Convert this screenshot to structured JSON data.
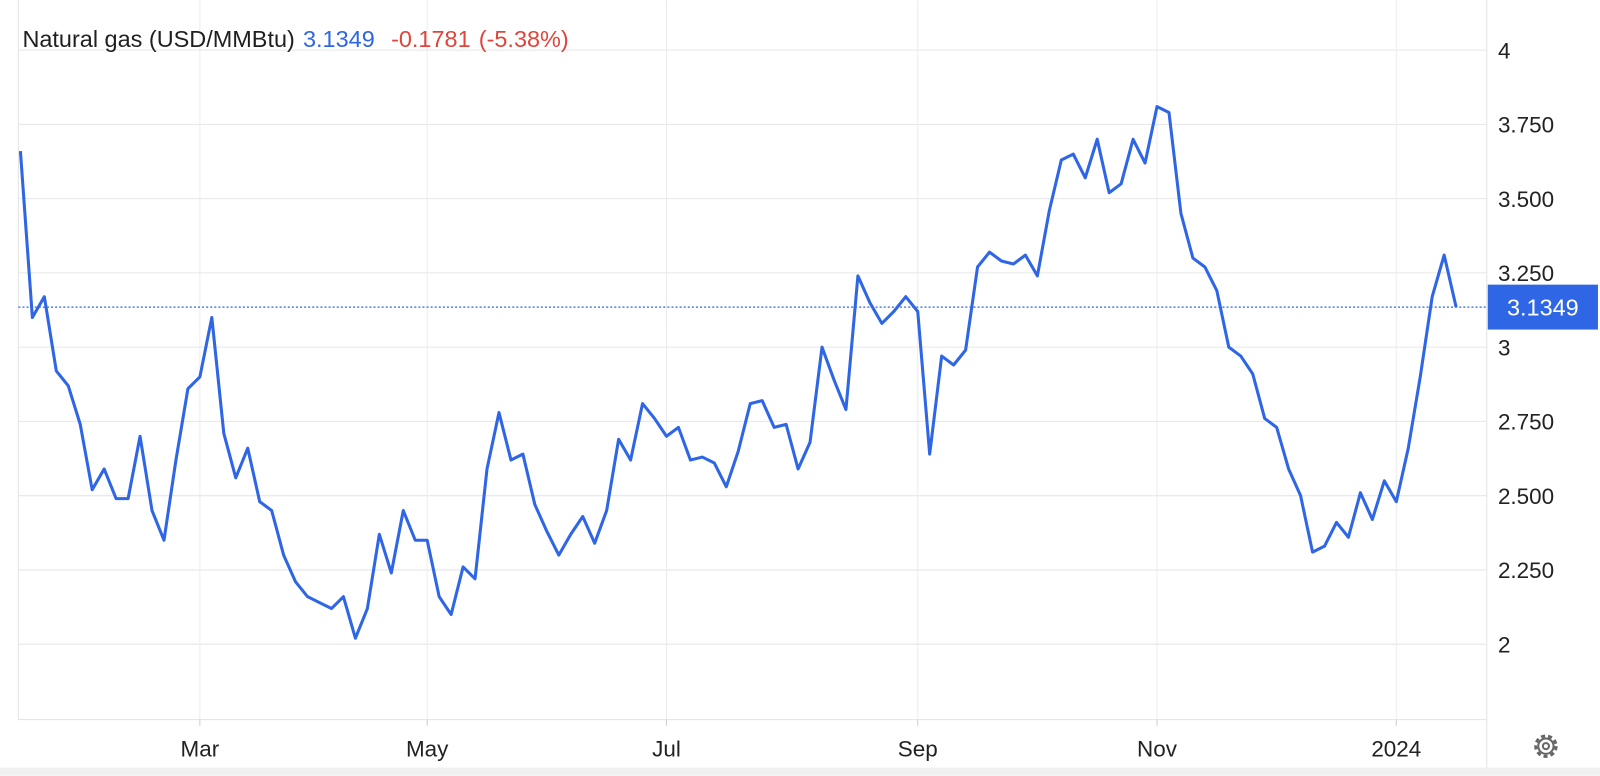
{
  "chart_data": {
    "type": "line",
    "title": "Natural gas (USD/MMBtu)",
    "last_price": 3.1349,
    "change": -0.1781,
    "change_percent_label": "(-5.38%)",
    "categories": [
      null,
      null,
      null,
      null,
      null,
      null,
      null,
      null,
      null,
      null,
      null,
      null,
      null,
      null,
      null,
      "Mar",
      null,
      null,
      null,
      null,
      null,
      null,
      null,
      null,
      null,
      null,
      null,
      null,
      null,
      null,
      null,
      null,
      null,
      null,
      "May",
      null,
      null,
      null,
      null,
      null,
      null,
      null,
      null,
      null,
      null,
      null,
      null,
      null,
      null,
      null,
      null,
      null,
      null,
      null,
      "Jul",
      null,
      null,
      null,
      null,
      null,
      null,
      null,
      null,
      null,
      null,
      null,
      null,
      null,
      null,
      null,
      null,
      null,
      null,
      null,
      null,
      "Sep",
      null,
      null,
      null,
      null,
      null,
      null,
      null,
      null,
      null,
      null,
      null,
      null,
      null,
      null,
      null,
      null,
      null,
      null,
      null,
      "Nov",
      null,
      null,
      null,
      null,
      null,
      null,
      null,
      null,
      null,
      null,
      null,
      null,
      null,
      null,
      null,
      null,
      null,
      null,
      null,
      "2024",
      null,
      null,
      null,
      null,
      null
    ],
    "series": [
      {
        "name": "Natural gas",
        "color": "#2f66e6",
        "values": [
          3.66,
          3.1,
          3.17,
          2.92,
          2.87,
          2.74,
          2.52,
          2.59,
          2.49,
          2.49,
          2.7,
          2.45,
          2.35,
          2.62,
          2.86,
          2.9,
          3.1,
          2.71,
          2.56,
          2.66,
          2.48,
          2.45,
          2.3,
          2.21,
          2.16,
          2.14,
          2.12,
          2.16,
          2.02,
          2.12,
          2.37,
          2.24,
          2.45,
          2.35,
          2.35,
          2.16,
          2.1,
          2.26,
          2.22,
          2.59,
          2.78,
          2.62,
          2.64,
          2.47,
          2.38,
          2.3,
          2.37,
          2.43,
          2.34,
          2.45,
          2.69,
          2.62,
          2.81,
          2.76,
          2.7,
          2.73,
          2.62,
          2.63,
          2.61,
          2.53,
          2.65,
          2.81,
          2.82,
          2.73,
          2.74,
          2.59,
          2.68,
          3.0,
          2.89,
          2.79,
          3.24,
          3.15,
          3.08,
          3.12,
          3.17,
          3.12,
          2.64,
          2.97,
          2.94,
          2.99,
          3.27,
          3.32,
          3.29,
          3.28,
          3.31,
          3.24,
          3.46,
          3.63,
          3.65,
          3.57,
          3.7,
          3.52,
          3.55,
          3.7,
          3.62,
          3.81,
          3.79,
          3.45,
          3.3,
          3.27,
          3.19,
          3.0,
          2.97,
          2.91,
          2.76,
          2.73,
          2.59,
          2.5,
          2.31,
          2.33,
          2.41,
          2.36,
          2.51,
          2.42,
          2.55,
          2.48,
          2.66,
          2.9,
          3.17,
          3.31,
          3.1349
        ]
      }
    ],
    "ylim": [
      1.746,
      4.168
    ],
    "yticks": [
      2,
      {
        "value": 2.25,
        "label": "2.250"
      },
      {
        "value": 2.5,
        "label": "2.500"
      },
      {
        "value": 2.75,
        "label": "2.750"
      },
      3,
      {
        "value": 3.25,
        "label": "3.250"
      },
      {
        "value": 3.5,
        "label": "3.500"
      },
      {
        "value": 3.75,
        "label": "3.750"
      },
      4
    ],
    "grid": true
  }
}
